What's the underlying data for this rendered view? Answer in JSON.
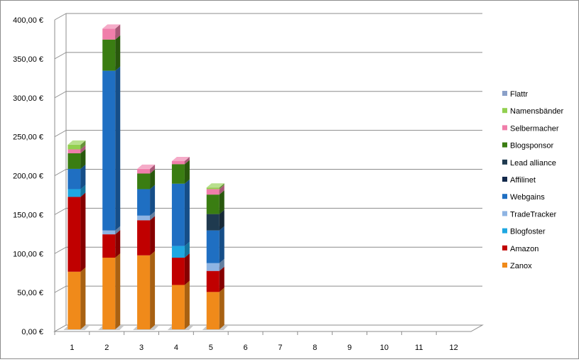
{
  "chart_data": {
    "type": "bar",
    "stacked": true,
    "style": "3d-column",
    "title": "",
    "xlabel": "",
    "ylabel": "",
    "categories": [
      "1",
      "2",
      "3",
      "4",
      "5",
      "6",
      "7",
      "8",
      "9",
      "10",
      "11",
      "12"
    ],
    "ylim": [
      0,
      400
    ],
    "yticks": [
      0,
      50,
      100,
      150,
      200,
      250,
      300,
      350,
      400
    ],
    "ytick_labels": [
      "0,00 €",
      "50,00 €",
      "100,00 €",
      "150,00 €",
      "200,00 €",
      "250,00 €",
      "300,00 €",
      "350,00 €",
      "400,00 €"
    ],
    "grid": true,
    "legend_position": "right",
    "series": [
      {
        "name": "Zanox",
        "color": "#F08A1A",
        "values": [
          74,
          92,
          95,
          57,
          48,
          0,
          0,
          0,
          0,
          0,
          0,
          0
        ]
      },
      {
        "name": "Amazon",
        "color": "#C00000",
        "values": [
          96,
          30,
          45,
          35,
          27,
          0,
          0,
          0,
          0,
          0,
          0,
          0
        ]
      },
      {
        "name": "Blogfoster",
        "color": "#1EA7E1",
        "values": [
          10,
          0,
          0,
          15,
          0,
          0,
          0,
          0,
          0,
          0,
          0,
          0
        ]
      },
      {
        "name": "TradeTracker",
        "color": "#8EB4E3",
        "values": [
          0,
          5,
          6,
          0,
          10,
          0,
          0,
          0,
          0,
          0,
          0,
          0
        ]
      },
      {
        "name": "Webgains",
        "color": "#1F6FC2",
        "values": [
          26,
          205,
          34,
          80,
          42,
          0,
          0,
          0,
          0,
          0,
          0,
          0
        ]
      },
      {
        "name": "Affilinet",
        "color": "#13294B",
        "values": [
          0,
          0,
          0,
          0,
          0,
          0,
          0,
          0,
          0,
          0,
          0,
          0
        ]
      },
      {
        "name": "Lead alliance",
        "color": "#1F3A4F",
        "values": [
          0,
          0,
          0,
          0,
          21,
          0,
          0,
          0,
          0,
          0,
          0,
          0
        ]
      },
      {
        "name": "Blogsponsor",
        "color": "#3A7D12",
        "values": [
          20,
          40,
          20,
          25,
          25,
          0,
          0,
          0,
          0,
          0,
          0,
          0
        ]
      },
      {
        "name": "Selbermacher",
        "color": "#F07EAA",
        "values": [
          5,
          14,
          6,
          4,
          7,
          0,
          0,
          0,
          0,
          0,
          0,
          0
        ]
      },
      {
        "name": "Namensbänder",
        "color": "#92D050",
        "values": [
          6,
          0,
          0,
          0,
          2,
          0,
          0,
          0,
          0,
          0,
          0,
          0
        ]
      },
      {
        "name": "Flattr",
        "color": "#8AA0C8",
        "values": [
          0,
          0,
          0,
          0,
          0,
          0,
          0,
          0,
          0,
          0,
          0,
          0
        ]
      }
    ]
  }
}
